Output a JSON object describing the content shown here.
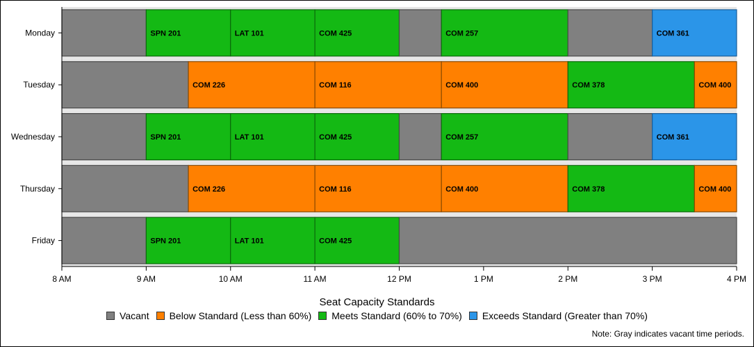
{
  "chart_data": {
    "type": "bar",
    "orientation": "horizontal",
    "stacked": true,
    "categories": [
      "Monday",
      "Tuesday",
      "Wednesday",
      "Thursday",
      "Friday"
    ],
    "x_ticks": [
      "8 AM",
      "9 AM",
      "10 AM",
      "11 AM",
      "12 PM",
      "1 PM",
      "2 PM",
      "3 PM",
      "4 PM"
    ],
    "xlim": [
      8,
      16
    ],
    "legend_title": "Seat Capacity Standards",
    "legend": [
      {
        "key": "vacant",
        "label": "Vacant",
        "color": "#808080"
      },
      {
        "key": "below",
        "label": "Below Standard (Less than 60%)",
        "color": "#ff8000"
      },
      {
        "key": "meets",
        "label": "Meets Standard (60% to 70%)",
        "color": "#14b914"
      },
      {
        "key": "exceeds",
        "label": "Exceeds Standard (Greater than 70%)",
        "color": "#2b95e8"
      }
    ],
    "note": "Note: Gray indicates vacant time periods.",
    "rows": [
      {
        "day": "Monday",
        "segments": [
          {
            "start": 8,
            "end": 9,
            "status": "vacant",
            "label": ""
          },
          {
            "start": 9,
            "end": 10,
            "status": "meets",
            "label": "SPN 201"
          },
          {
            "start": 10,
            "end": 11,
            "status": "meets",
            "label": "LAT 101"
          },
          {
            "start": 11,
            "end": 12,
            "status": "meets",
            "label": "COM 425"
          },
          {
            "start": 12,
            "end": 12.5,
            "status": "vacant",
            "label": ""
          },
          {
            "start": 12.5,
            "end": 14,
            "status": "meets",
            "label": "COM 257"
          },
          {
            "start": 14,
            "end": 15,
            "status": "vacant",
            "label": ""
          },
          {
            "start": 15,
            "end": 16,
            "status": "exceeds",
            "label": "COM 361"
          }
        ]
      },
      {
        "day": "Tuesday",
        "segments": [
          {
            "start": 8,
            "end": 9.5,
            "status": "vacant",
            "label": ""
          },
          {
            "start": 9.5,
            "end": 11,
            "status": "below",
            "label": "COM 226"
          },
          {
            "start": 11,
            "end": 12.5,
            "status": "below",
            "label": "COM 116"
          },
          {
            "start": 12.5,
            "end": 14,
            "status": "below",
            "label": "COM 400"
          },
          {
            "start": 14,
            "end": 15.5,
            "status": "meets",
            "label": "COM 378"
          },
          {
            "start": 15.5,
            "end": 16,
            "status": "below",
            "label": "COM 400"
          }
        ]
      },
      {
        "day": "Wednesday",
        "segments": [
          {
            "start": 8,
            "end": 9,
            "status": "vacant",
            "label": ""
          },
          {
            "start": 9,
            "end": 10,
            "status": "meets",
            "label": "SPN 201"
          },
          {
            "start": 10,
            "end": 11,
            "status": "meets",
            "label": "LAT 101"
          },
          {
            "start": 11,
            "end": 12,
            "status": "meets",
            "label": "COM 425"
          },
          {
            "start": 12,
            "end": 12.5,
            "status": "vacant",
            "label": ""
          },
          {
            "start": 12.5,
            "end": 14,
            "status": "meets",
            "label": "COM 257"
          },
          {
            "start": 14,
            "end": 15,
            "status": "vacant",
            "label": ""
          },
          {
            "start": 15,
            "end": 16,
            "status": "exceeds",
            "label": "COM 361"
          }
        ]
      },
      {
        "day": "Thursday",
        "segments": [
          {
            "start": 8,
            "end": 9.5,
            "status": "vacant",
            "label": ""
          },
          {
            "start": 9.5,
            "end": 11,
            "status": "below",
            "label": "COM 226"
          },
          {
            "start": 11,
            "end": 12.5,
            "status": "below",
            "label": "COM 116"
          },
          {
            "start": 12.5,
            "end": 14,
            "status": "below",
            "label": "COM 400"
          },
          {
            "start": 14,
            "end": 15.5,
            "status": "meets",
            "label": "COM 378"
          },
          {
            "start": 15.5,
            "end": 16,
            "status": "below",
            "label": "COM 400"
          }
        ]
      },
      {
        "day": "Friday",
        "segments": [
          {
            "start": 8,
            "end": 9,
            "status": "vacant",
            "label": ""
          },
          {
            "start": 9,
            "end": 10,
            "status": "meets",
            "label": "SPN 201"
          },
          {
            "start": 10,
            "end": 11,
            "status": "meets",
            "label": "LAT 101"
          },
          {
            "start": 11,
            "end": 12,
            "status": "meets",
            "label": "COM 425"
          },
          {
            "start": 12,
            "end": 16,
            "status": "vacant",
            "label": ""
          }
        ]
      }
    ]
  }
}
